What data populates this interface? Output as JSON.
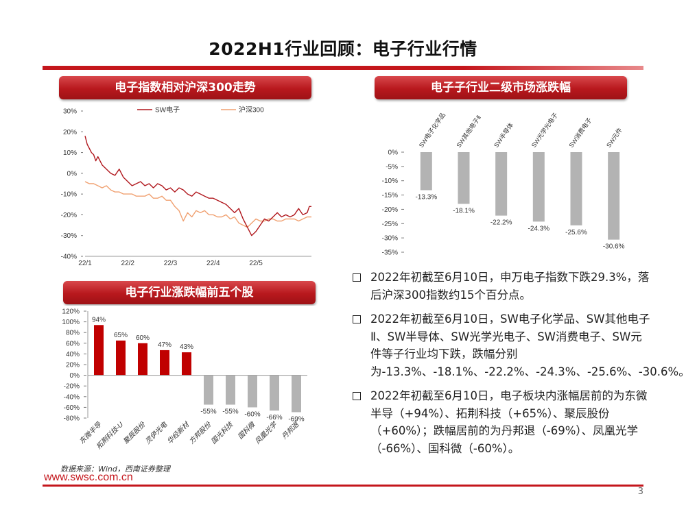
{
  "slide": {
    "title": "2022H1行业回顾：电子行业行情",
    "page_number": "3",
    "source": "数据来源：Wind，西南证券整理",
    "footer_url": "www.swsc.com.cn"
  },
  "sections": {
    "index_chart": "电子指数相对沪深300走势",
    "sub_industry_chart": "电子子行业二级市场涨跌幅",
    "top_stocks_chart": "电子行业涨跌幅前五个股"
  },
  "bullets": [
    "2022年初截至6月10日，申万电子指数下跌29.3%，落后沪深300指数约15个百分点。",
    "2022年初截至6月10日，SW电子化学品、SW其他电子Ⅱ、SW半导体、SW光学光电子、SW消费电子、SW元件等子行业均下跌，跌幅分别为-13.3%、-18.1%、-22.2%、-24.3%、-25.6%、-30.6%。",
    "2022年初截至6月10日，电子板块内涨幅居前的为东微半导（+94%）、拓荆科技（+65%）、聚辰股份（+60%）；跌幅居前的为丹邦退（-69%）、凤凰光学（-66%）、国科微（-60%）。"
  ],
  "colors": {
    "brand_red": "#c4161c",
    "bar_red": "#c00000",
    "bar_gray": "#b3b3b3",
    "hs300": "#f0a070",
    "sw": "#b0161c"
  },
  "chart_data": [
    {
      "id": "index",
      "type": "line",
      "x_ticks": [
        "22/1",
        "22/2",
        "22/3",
        "22/4",
        "22/5"
      ],
      "x_tick_positions": [
        0,
        20,
        40,
        60,
        80
      ],
      "y_ticks": [
        "30%",
        "20%",
        "10%",
        "0%",
        "-10%",
        "-20%",
        "-30%",
        "-40%"
      ],
      "ylim": [
        -40,
        30
      ],
      "xlim": [
        0,
        106
      ],
      "legend": "top",
      "series": [
        {
          "name": "SW电子",
          "color": "#b0161c",
          "x": [
            0,
            1,
            2,
            3,
            4,
            5,
            6,
            8,
            10,
            12,
            14,
            16,
            18,
            19,
            20,
            22,
            24,
            26,
            28,
            30,
            32,
            34,
            36,
            38,
            40,
            42,
            44,
            46,
            48,
            50,
            52,
            54,
            56,
            58,
            60,
            62,
            64,
            66,
            68,
            70,
            72,
            74,
            76,
            78,
            80,
            82,
            84,
            86,
            88,
            90,
            92,
            94,
            96,
            98,
            100,
            102,
            104,
            105,
            106
          ],
          "values": [
            18,
            14,
            12,
            10,
            9,
            6,
            8,
            4,
            2,
            0,
            -1,
            2,
            -2,
            -3,
            -4,
            -6,
            -5,
            -4,
            -6,
            -5,
            -7,
            -5,
            -6,
            -8,
            -7,
            -9,
            -7,
            -8,
            -10,
            -11,
            -9,
            -10,
            -11,
            -12,
            -12,
            -13,
            -14,
            -15,
            -17,
            -19,
            -17,
            -22,
            -26,
            -30,
            -28,
            -25,
            -22,
            -23,
            -21,
            -19,
            -21,
            -20,
            -21,
            -20,
            -17,
            -20,
            -19,
            -16,
            -16
          ]
        },
        {
          "name": "沪深300",
          "color": "#f0a070",
          "x": [
            0,
            2,
            4,
            6,
            8,
            10,
            12,
            14,
            16,
            18,
            20,
            22,
            24,
            26,
            28,
            30,
            32,
            34,
            36,
            38,
            40,
            42,
            44,
            46,
            48,
            50,
            52,
            54,
            56,
            58,
            60,
            62,
            64,
            66,
            68,
            70,
            72,
            74,
            76,
            78,
            80,
            82,
            84,
            86,
            88,
            90,
            92,
            94,
            96,
            98,
            100,
            102,
            104,
            106
          ],
          "values": [
            -4,
            -5,
            -5,
            -6,
            -7,
            -6,
            -8,
            -9,
            -9,
            -10,
            -10,
            -10,
            -11,
            -11,
            -11,
            -10,
            -12,
            -12,
            -11,
            -13,
            -13,
            -16,
            -18,
            -23,
            -19,
            -21,
            -18,
            -19,
            -18,
            -20,
            -20,
            -21,
            -21,
            -20,
            -22,
            -21,
            -24,
            -25,
            -26,
            -24,
            -22,
            -23,
            -23,
            -22,
            -22,
            -23,
            -23,
            -22,
            -22,
            -22,
            -23,
            -22,
            -21,
            -21
          ]
        }
      ]
    },
    {
      "id": "sub_industry",
      "type": "bar",
      "categories": [
        "SW电子化学品",
        "SW其他电子Ⅱ",
        "SW半导体",
        "SW光学光电子",
        "SW消费电子",
        "SW元件"
      ],
      "values": [
        -13.3,
        -18.1,
        -22.2,
        -24.3,
        -25.6,
        -30.6
      ],
      "labels": [
        "-13.3%",
        "-18.1%",
        "-22.2%",
        "-24.3%",
        "-25.6%",
        "-30.6%"
      ],
      "y_ticks": [
        "0%",
        "-5%",
        "-10%",
        "-15%",
        "-20%",
        "-25%",
        "-30%",
        "-35%"
      ],
      "ylim": [
        -35,
        0
      ],
      "bar_color": "#b3b3b3"
    },
    {
      "id": "top_stocks",
      "type": "bar",
      "categories": [
        "东微半导",
        "拓荆科技-U",
        "聚辰股份",
        "灵伊光电",
        "华经新材",
        "方邦股份",
        "国光科技",
        "国科微",
        "凤凰光学",
        "丹邦退"
      ],
      "values": [
        94,
        65,
        60,
        47,
        43,
        -55,
        -55,
        -60,
        -66,
        -69
      ],
      "labels": [
        "94%",
        "65%",
        "60%",
        "47%",
        "43%",
        "-55%",
        "-55%",
        "-60%",
        "-66%",
        "-69%"
      ],
      "y_ticks": [
        "120%",
        "100%",
        "80%",
        "60%",
        "40%",
        "20%",
        "0%",
        "-20%",
        "-40%",
        "-60%",
        "-80%"
      ],
      "ylim": [
        -80,
        120
      ],
      "pos_color": "#c00000",
      "neg_color": "#b3b3b3"
    }
  ]
}
